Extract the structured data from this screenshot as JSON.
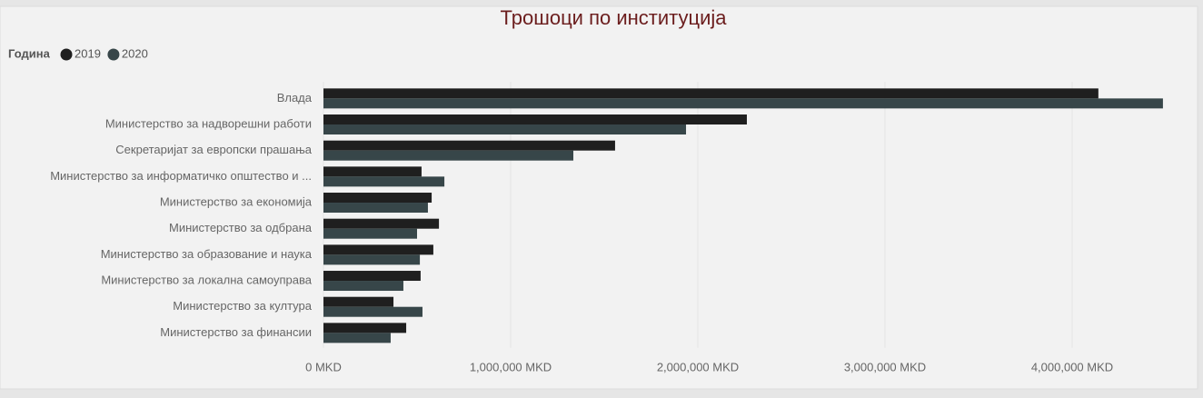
{
  "chart_data": {
    "type": "bar",
    "orientation": "horizontal",
    "title": "Трошоци по институција",
    "legend_title": "Година",
    "categories": [
      "Влада",
      "Министерство за надворешни работи",
      "Секретаријат за европски прашања",
      "Министерство за информатичко општество и ...",
      "Министерство за економија",
      "Министерство за одбрана",
      "Министерство за образование и наука",
      "Министерство за локална самоуправа",
      "Министерство за култура",
      "Министерство за финансии"
    ],
    "series": [
      {
        "name": "2019",
        "color": "#1f1f1f",
        "values": [
          4140000,
          2262000,
          1558000,
          524000,
          578000,
          617000,
          587000,
          519000,
          374000,
          442000
        ]
      },
      {
        "name": "2020",
        "color": "#374649",
        "values": [
          4485000,
          1937000,
          1335000,
          646000,
          558000,
          500000,
          515000,
          427000,
          529000,
          359000
        ]
      }
    ],
    "xlim": [
      0,
      4600000
    ],
    "xticks": [
      {
        "value": 0,
        "label": "0 MKD"
      },
      {
        "value": 1000000,
        "label": "1,000,000 MKD"
      },
      {
        "value": 2000000,
        "label": "2,000,000 MKD"
      },
      {
        "value": 3000000,
        "label": "3,000,000 MKD"
      },
      {
        "value": 4000000,
        "label": "4,000,000 MKD"
      }
    ],
    "grid": true
  }
}
